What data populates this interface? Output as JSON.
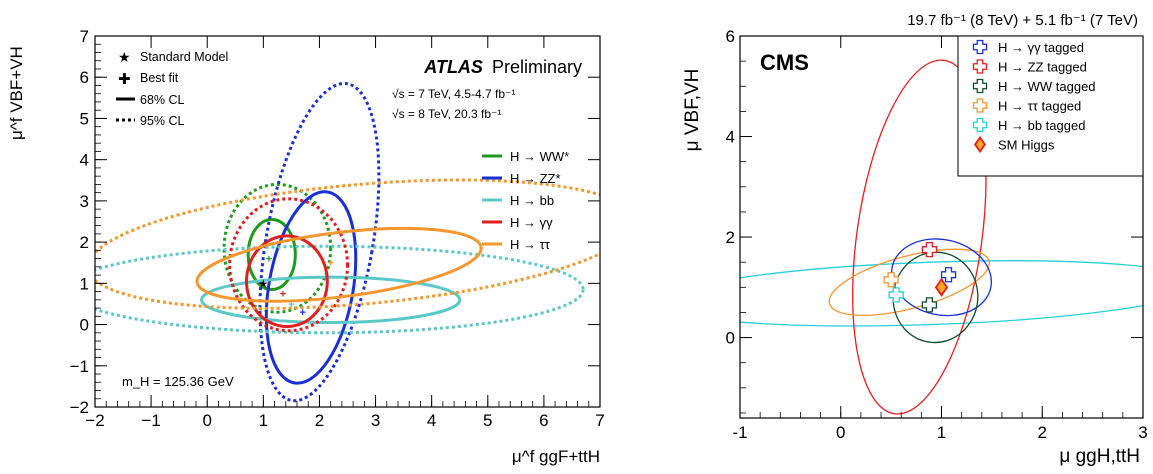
{
  "chart_data": [
    {
      "type": "contour",
      "experiment": "ATLAS",
      "status": "Preliminary",
      "energy_lines": [
        "√s = 7 TeV, 4.5-4.7 fb⁻¹",
        "√s = 8 TeV, 20.3 fb⁻¹"
      ],
      "annotation": "m_H = 125.36 GeV",
      "xlabel": "μ^f ggF+ttH",
      "ylabel": "μ^f VBF+VH",
      "xlim": [
        -2,
        7
      ],
      "ylim": [
        -2,
        7
      ],
      "xticks": [
        -2,
        -1,
        0,
        1,
        2,
        3,
        4,
        5,
        6,
        7
      ],
      "yticks": [
        -2,
        -1,
        0,
        1,
        2,
        3,
        4,
        5,
        6,
        7
      ],
      "legend_style": [
        {
          "symbol": "star",
          "label": "Standard Model"
        },
        {
          "symbol": "plus",
          "label": "Best fit"
        },
        {
          "symbol": "solid",
          "label": "68% CL"
        },
        {
          "symbol": "dashed",
          "label": "95% CL"
        }
      ],
      "sm_point": [
        1,
        1
      ],
      "series": [
        {
          "name": "H → WW*",
          "color": "#1f9a1f",
          "best_fit": [
            1.1,
            1.6
          ],
          "cl68": {
            "cx": 1.15,
            "cy": 1.7,
            "rx": 0.42,
            "ry": 0.85,
            "angle": 0
          },
          "cl95": {
            "cx": 1.25,
            "cy": 1.85,
            "rx": 0.95,
            "ry": 1.55,
            "angle": 0
          }
        },
        {
          "name": "H → ZZ*",
          "color": "#1a2fd4",
          "best_fit": [
            1.7,
            0.3
          ],
          "cl68": {
            "cx": 1.85,
            "cy": 0.9,
            "rx": 0.75,
            "ry": 2.35,
            "angle": 10
          },
          "cl95": {
            "cx": 2.0,
            "cy": 2.0,
            "rx": 0.95,
            "ry": 3.9,
            "angle": 10
          }
        },
        {
          "name": "H → bb",
          "color": "#5bc8c8",
          "best_fit": [
            1.5,
            0.5
          ],
          "cl68": {
            "cx": 2.2,
            "cy": 0.6,
            "rx": 2.3,
            "ry": 0.55,
            "angle": 0
          },
          "cl95": {
            "cx": 2.1,
            "cy": 0.85,
            "rx": 4.6,
            "ry": 1.05,
            "angle": 0
          }
        },
        {
          "name": "H → γγ",
          "color": "#e01f1f",
          "best_fit": [
            1.35,
            0.75
          ],
          "cl68": {
            "cx": 1.42,
            "cy": 1.05,
            "rx": 0.72,
            "ry": 1.1,
            "angle": 0
          },
          "cl95": {
            "cx": 1.45,
            "cy": 1.45,
            "rx": 1.05,
            "ry": 1.6,
            "angle": 0
          }
        },
        {
          "name": "H → ττ",
          "color": "#f5962e",
          "best_fit": [
            2.2,
            1.5
          ],
          "cl68": {
            "cx": 2.35,
            "cy": 1.45,
            "rx": 2.55,
            "ry": 0.78,
            "angle": -7
          },
          "cl95": {
            "cx": 2.75,
            "cy": 1.95,
            "rx": 4.9,
            "ry": 1.45,
            "angle": -5
          }
        }
      ]
    },
    {
      "type": "contour",
      "experiment": "CMS",
      "header": "19.7 fb⁻¹ (8 TeV) + 5.1 fb⁻¹ (7 TeV)",
      "xlabel": "μ ggH,ttH",
      "ylabel": "μ VBF,VH",
      "xlim": [
        -1,
        3
      ],
      "ylim": [
        -1.6,
        6
      ],
      "xticks": [
        -1,
        0,
        1,
        2,
        3
      ],
      "yticks": [
        0,
        2,
        4,
        6
      ],
      "sm_point": [
        1,
        1
      ],
      "sm_label": "SM Higgs",
      "series": [
        {
          "name": "H → γγ tagged",
          "color": "#1a2fd4",
          "best_fit": [
            1.07,
            1.25
          ],
          "cl68": {
            "cx": 1.0,
            "cy": 1.2,
            "rx": 0.5,
            "ry": 0.75,
            "angle": 12
          }
        },
        {
          "name": "H → ZZ tagged",
          "color": "#e01f1f",
          "best_fit": [
            0.88,
            1.75
          ],
          "cl68": {
            "cx": 0.78,
            "cy": 2.0,
            "rx": 0.62,
            "ry": 3.55,
            "angle": 8
          }
        },
        {
          "name": "H → WW tagged",
          "color": "#0b4d2a",
          "best_fit": [
            0.88,
            0.65
          ],
          "cl68": {
            "cx": 0.94,
            "cy": 0.8,
            "rx": 0.42,
            "ry": 0.9,
            "angle": 8
          }
        },
        {
          "name": "H → ττ tagged",
          "color": "#f5962e",
          "best_fit": [
            0.5,
            1.15
          ],
          "cl68": {
            "cx": 0.68,
            "cy": 1.1,
            "rx": 0.82,
            "ry": 0.52,
            "angle": -15
          }
        },
        {
          "name": "H → bb tagged",
          "color": "#22d0dc",
          "best_fit": [
            0.55,
            0.85
          ],
          "cl68": {
            "cx": 0.9,
            "cy": 0.88,
            "rx": 2.7,
            "ry": 0.62,
            "angle": -2
          }
        }
      ]
    }
  ]
}
